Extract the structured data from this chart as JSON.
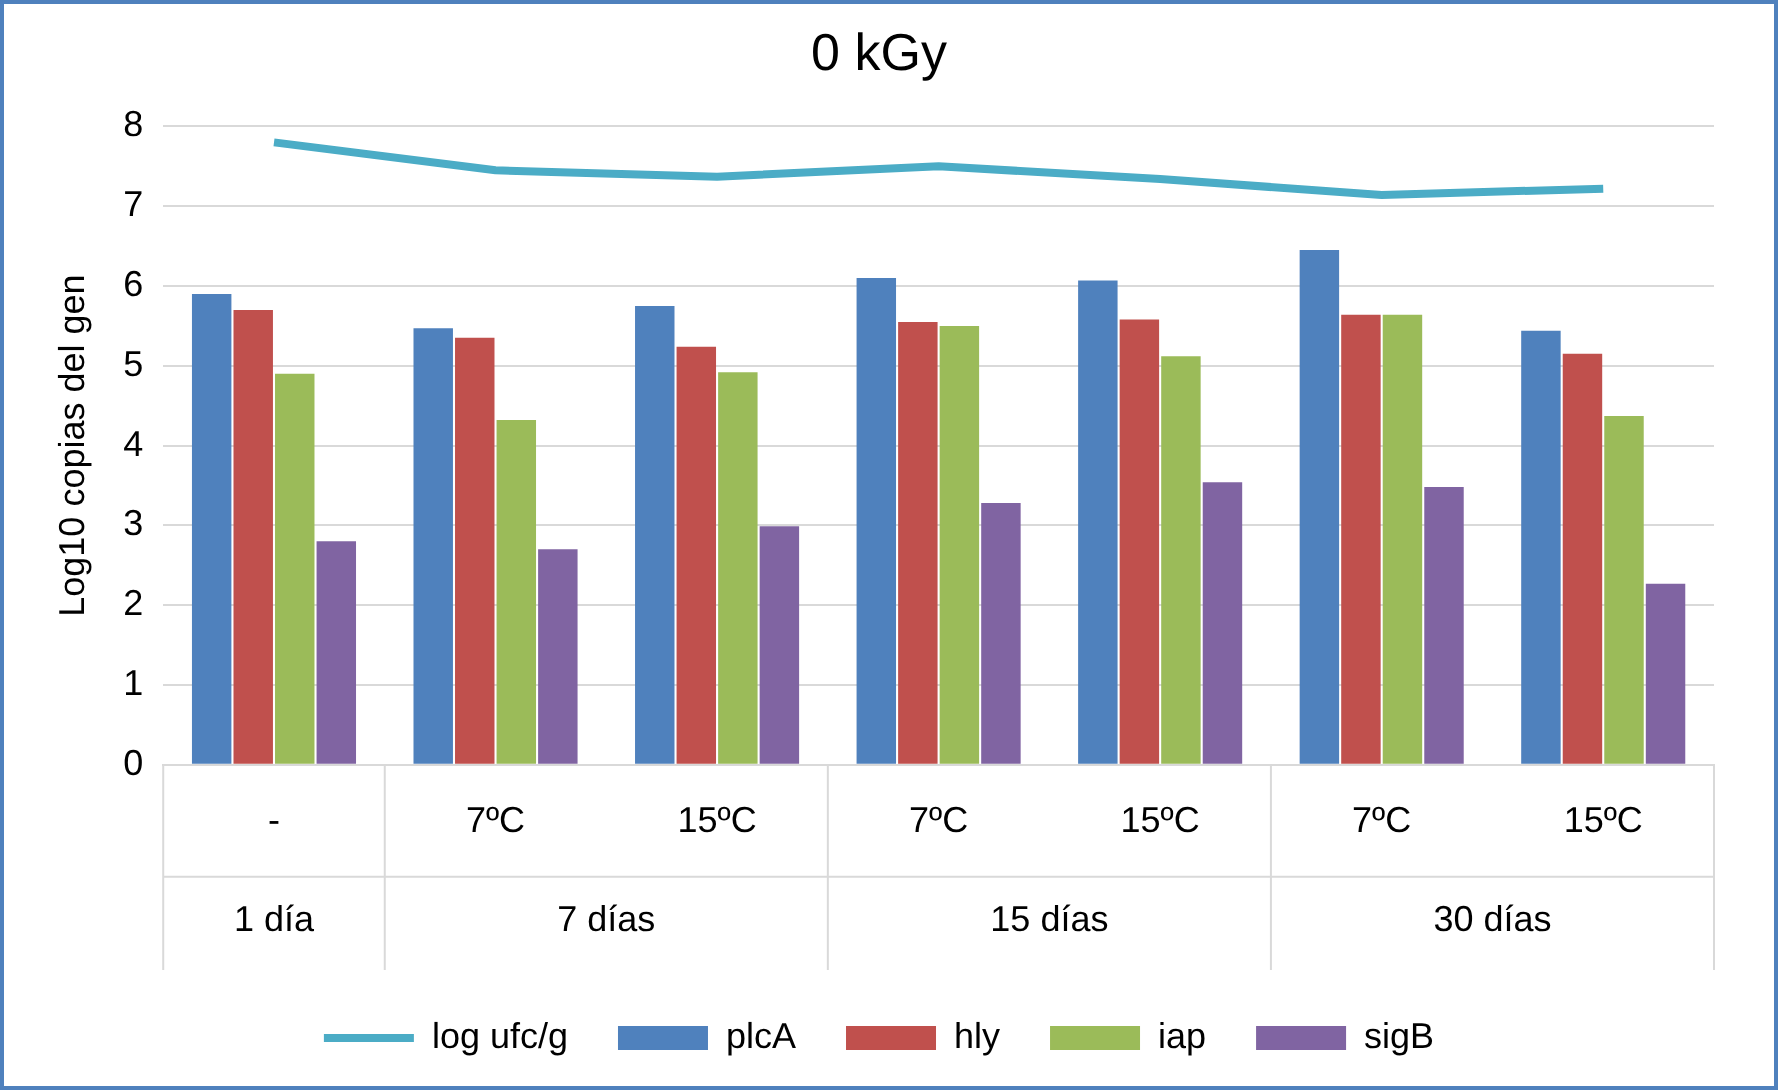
{
  "chart_data": {
    "type": "bar",
    "title": "0 kGy",
    "ylabel": "Log10 copias del gen",
    "categories": [
      "-",
      "7ºC",
      "15ºC",
      "7ºC",
      "15ºC",
      "7ºC",
      "15ºC"
    ],
    "annotations": [
      "1 día",
      "7 días",
      "15 días",
      "30 días"
    ],
    "series": [
      {
        "name": "plcA",
        "color": "#4f81bd",
        "values": [
          5.9,
          5.47,
          5.75,
          6.1,
          6.07,
          6.45,
          5.44
        ]
      },
      {
        "name": "hly",
        "color": "#c0504d",
        "values": [
          5.7,
          5.35,
          5.24,
          5.55,
          5.58,
          5.64,
          5.15
        ]
      },
      {
        "name": "iap",
        "color": "#9bbb59",
        "values": [
          4.9,
          4.32,
          4.92,
          5.5,
          5.12,
          5.64,
          4.37
        ]
      },
      {
        "name": "sigB",
        "color": "#8064a2",
        "values": [
          2.8,
          2.7,
          2.99,
          3.28,
          3.54,
          3.48,
          2.27
        ]
      },
      {
        "name": "log ufc/g",
        "type": "line",
        "color": "#4bacc6",
        "values": [
          7.8,
          7.45,
          7.37,
          7.5,
          7.34,
          7.14,
          7.22
        ]
      }
    ],
    "ylim": [
      0,
      8
    ],
    "yticks": [
      0,
      1,
      2,
      3,
      4,
      5,
      6,
      7,
      8
    ],
    "grid": "y",
    "legend": "bottom",
    "marker": "none"
  }
}
